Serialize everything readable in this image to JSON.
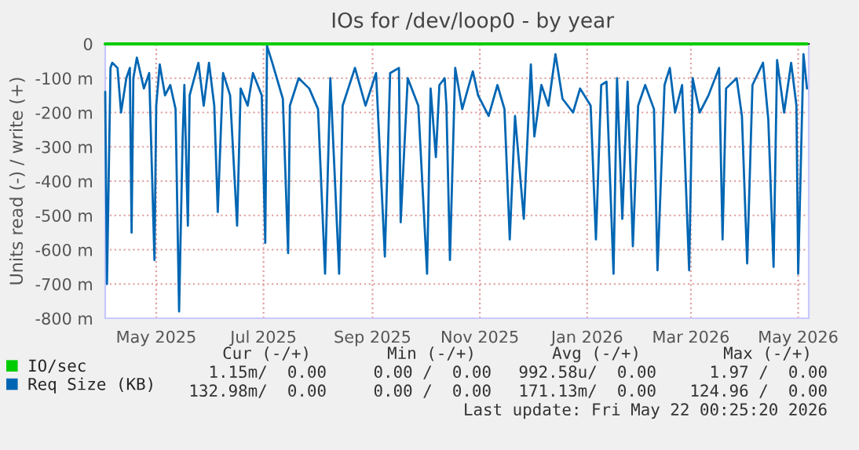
{
  "chart_data": {
    "type": "line",
    "title": "IOs for /dev/loop0 - by year",
    "ylabel": "Units read (-) / write (+)",
    "xlim": [
      "2025-04-02",
      "2026-05-07"
    ],
    "xticks": [
      {
        "value": "2025-05-01",
        "label": "May 2025"
      },
      {
        "value": "2025-07-01",
        "label": "Jul 2025"
      },
      {
        "value": "2025-09-01",
        "label": "Sep 2025"
      },
      {
        "value": "2025-11-01",
        "label": "Nov 2025"
      },
      {
        "value": "2026-01-01",
        "label": "Jan 2026"
      },
      {
        "value": "2026-03-01",
        "label": "Mar 2026"
      },
      {
        "value": "2026-05-01",
        "label": "May 2026"
      }
    ],
    "ylim": [
      -800,
      0
    ],
    "yticks": [
      {
        "value": -800,
        "label": "-800 m"
      },
      {
        "value": -700,
        "label": "-700 m"
      },
      {
        "value": -600,
        "label": "-600 m"
      },
      {
        "value": -500,
        "label": "-500 m"
      },
      {
        "value": -400,
        "label": "-400 m"
      },
      {
        "value": -300,
        "label": "-300 m"
      },
      {
        "value": -200,
        "label": "-200 m"
      },
      {
        "value": -100,
        "label": "-100 m"
      },
      0
    ],
    "grid": true,
    "legend": "bottom left",
    "marker": "none",
    "line_style": "solid",
    "series": [
      {
        "name": "IO/sec",
        "color": "#00cc00",
        "x": [
          "2025-04-02",
          "2026-05-06"
        ],
        "values": [
          0,
          0
        ]
      },
      {
        "name": "Req Size (KB)",
        "color": "#0066b3",
        "x": [
          "2025-04-02",
          "2025-04-03",
          "2025-04-05",
          "2025-04-06",
          "2025-04-09",
          "2025-04-11",
          "2025-04-14",
          "2025-04-16",
          "2025-04-17",
          "2025-04-18",
          "2025-04-20",
          "2025-04-24",
          "2025-04-27",
          "2025-04-30",
          "2025-05-01",
          "2025-05-03",
          "2025-05-06",
          "2025-05-09",
          "2025-05-12",
          "2025-05-14",
          "2025-05-16",
          "2025-05-17",
          "2025-05-19",
          "2025-05-20",
          "2025-05-25",
          "2025-05-28",
          "2025-05-31",
          "2025-06-03",
          "2025-06-05",
          "2025-06-08",
          "2025-06-12",
          "2025-06-16",
          "2025-06-18",
          "2025-06-22",
          "2025-06-25",
          "2025-06-30",
          "2025-07-02",
          "2025-07-03",
          "2025-07-06",
          "2025-07-12",
          "2025-07-15",
          "2025-07-16",
          "2025-07-21",
          "2025-07-27",
          "2025-08-01",
          "2025-08-05",
          "2025-08-08",
          "2025-08-13",
          "2025-08-15",
          "2025-08-22",
          "2025-08-28",
          "2025-09-03",
          "2025-09-08",
          "2025-09-11",
          "2025-09-16",
          "2025-09-17",
          "2025-09-21",
          "2025-09-27",
          "2025-10-02",
          "2025-10-04",
          "2025-10-07",
          "2025-10-09",
          "2025-10-12",
          "2025-10-13",
          "2025-10-15",
          "2025-10-18",
          "2025-10-22",
          "2025-10-28",
          "2025-10-31",
          "2025-11-06",
          "2025-11-11",
          "2025-11-15",
          "2025-11-18",
          "2025-11-21",
          "2025-11-26",
          "2025-11-30",
          "2025-12-02",
          "2025-12-06",
          "2025-12-10",
          "2025-12-14",
          "2025-12-18",
          "2025-12-24",
          "2025-12-28",
          "2026-01-03",
          "2026-01-06",
          "2026-01-09",
          "2026-01-12",
          "2026-01-16",
          "2026-01-18",
          "2026-01-21",
          "2026-01-24",
          "2026-01-27",
          "2026-01-30",
          "2026-02-03",
          "2026-02-08",
          "2026-02-10",
          "2026-02-14",
          "2026-02-17",
          "2026-02-20",
          "2026-02-24",
          "2026-02-28",
          "2026-03-02",
          "2026-03-06",
          "2026-03-11",
          "2026-03-17",
          "2026-03-19",
          "2026-03-21",
          "2026-03-27",
          "2026-03-30",
          "2026-04-02",
          "2026-04-05",
          "2026-04-11",
          "2026-04-14",
          "2026-04-17",
          "2026-04-19",
          "2026-04-23",
          "2026-04-27",
          "2026-04-30",
          "2026-05-01",
          "2026-05-04",
          "2026-05-06"
        ],
        "values": [
          -140,
          -700,
          -70,
          -55,
          -70,
          -200,
          -100,
          -70,
          -550,
          -100,
          -40,
          -130,
          -85,
          -630,
          -180,
          -60,
          -150,
          -120,
          -190,
          -780,
          -280,
          -120,
          -530,
          -150,
          -55,
          -180,
          -55,
          -180,
          -490,
          -85,
          -150,
          -530,
          -130,
          -180,
          -85,
          -150,
          -580,
          -6,
          -55,
          -160,
          -610,
          -180,
          -100,
          -130,
          -190,
          -670,
          -100,
          -670,
          -180,
          -70,
          -180,
          -85,
          -620,
          -85,
          -70,
          -520,
          -100,
          -180,
          -670,
          -130,
          -330,
          -120,
          -100,
          -180,
          -630,
          -70,
          -190,
          -80,
          -150,
          -210,
          -120,
          -190,
          -570,
          -210,
          -510,
          -60,
          -270,
          -120,
          -180,
          -30,
          -160,
          -200,
          -130,
          -180,
          -570,
          -120,
          -110,
          -670,
          -100,
          -510,
          -110,
          -590,
          -180,
          -120,
          -190,
          -660,
          -120,
          -70,
          -200,
          -120,
          -660,
          -100,
          -200,
          -150,
          -70,
          -570,
          -130,
          -100,
          -210,
          -640,
          -120,
          -55,
          -220,
          -650,
          -47,
          -200,
          -55,
          -180,
          -670,
          -30,
          -130
        ]
      }
    ],
    "annotations": [
      "Cur (-/+)",
      "Min (-/+)",
      "Avg (-/+)",
      "Max (-/+)",
      "1.15m/  0.00",
      "0.00 /  0.00",
      "992.58u/  0.00",
      "1.97 /  0.00",
      "132.98m/  0.00",
      "0.00 /  0.00",
      "171.13m/  0.00",
      "124.96 /  0.00",
      "Last update: Fri May 22 00:25:20 2026"
    ]
  }
}
